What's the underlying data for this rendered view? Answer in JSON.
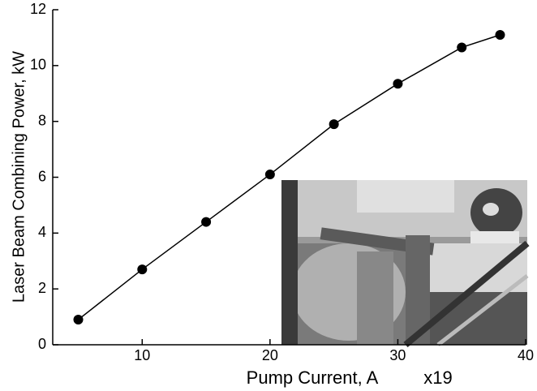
{
  "chart_data": {
    "type": "line",
    "x_label": "Pump Current, A",
    "y_label": "Laser Beam Combining Power, kW",
    "annotation": "x19",
    "x": [
      5,
      10,
      15,
      20,
      25,
      30,
      35,
      38
    ],
    "series": [
      {
        "color": "#000000",
        "values": [
          0.9,
          2.7,
          4.4,
          6.1,
          7.9,
          9.35,
          10.65,
          11.1
        ]
      }
    ],
    "xlim": [
      3,
      40
    ],
    "xticks": [
      10,
      20,
      30,
      40
    ],
    "ylim": [
      0,
      12
    ],
    "yticks": [
      0,
      2,
      4,
      6,
      8,
      10,
      12
    ]
  }
}
